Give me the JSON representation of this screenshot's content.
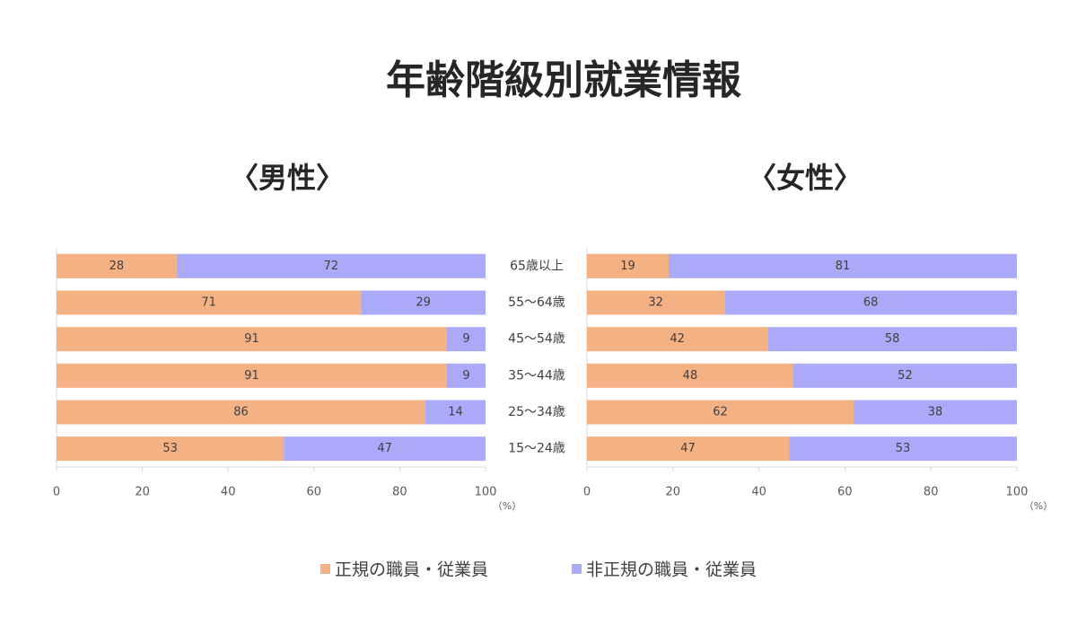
{
  "title": "年齢階級別就業情報",
  "chart_data": [
    {
      "type": "stacked-bar-horizontal",
      "subtitle": "〈男性〉",
      "categories": [
        "65歳以上",
        "55〜64歳",
        "45〜54歳",
        "35〜44歳",
        "25〜34歳",
        "15〜24歳"
      ],
      "series": [
        {
          "name": "正規の職員・従業員",
          "color": "#f4b183",
          "values": [
            28,
            71,
            91,
            91,
            86,
            53
          ]
        },
        {
          "name": "非正規の職員・従業員",
          "color": "#aaaaf8",
          "values": [
            72,
            29,
            9,
            9,
            14,
            47
          ]
        }
      ],
      "xlim": [
        0,
        100
      ],
      "xticks": [
        0,
        20,
        40,
        60,
        80,
        100
      ],
      "x_label": "（%）"
    },
    {
      "type": "stacked-bar-horizontal",
      "subtitle": "〈女性〉",
      "series": [
        {
          "color": "#f4b183",
          "values": [
            19,
            32,
            42,
            48,
            62,
            47
          ]
        },
        {
          "color": "#aaaaf8",
          "values": [
            81,
            68,
            58,
            52,
            38,
            53
          ]
        }
      ],
      "xlim": [
        0,
        100
      ],
      "xticks": [
        0,
        20,
        40,
        60,
        80,
        100
      ],
      "x_label": "（%）"
    }
  ]
}
